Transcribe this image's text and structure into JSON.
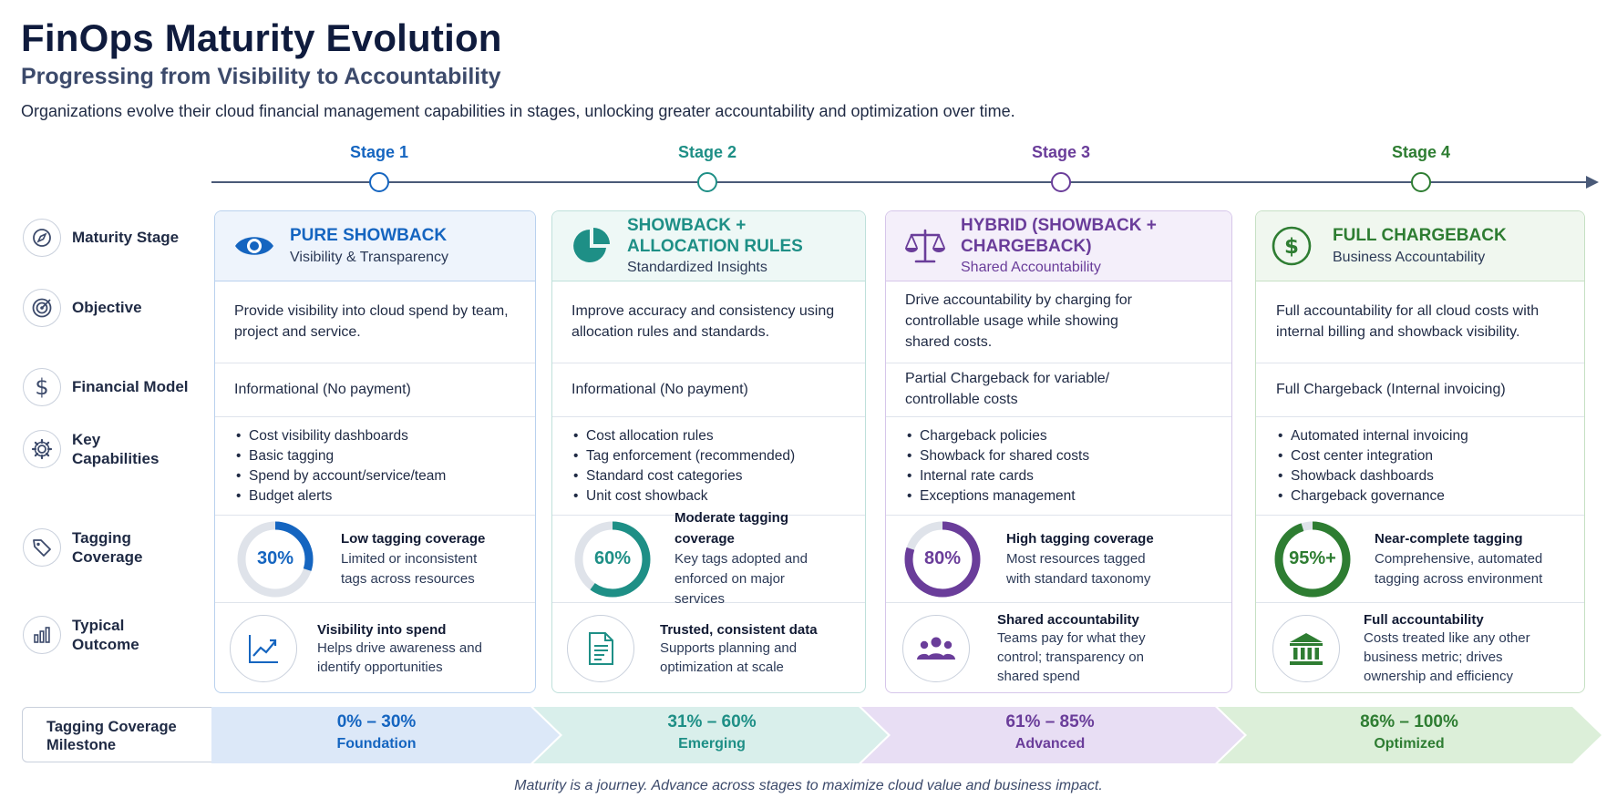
{
  "header": {
    "title": "FinOps Maturity Evolution",
    "subtitle": "Progressing from Visibility to Accountability",
    "intro": "Organizations evolve their cloud financial management capabilities in stages, unlocking greater accountability and optimization over time."
  },
  "rows": {
    "maturity_stage": "Maturity Stage",
    "objective": "Objective",
    "financial_model": "Financial Model",
    "key_capabilities": "Key Capabilities",
    "tagging_coverage": "Tagging Coverage",
    "typical_outcome": "Typical Outcome"
  },
  "stages": [
    {
      "label": "Stage 1",
      "color": "#1565c0",
      "tint": "#eef4fc",
      "border": "#b9d1ee",
      "icon": "eye-icon",
      "title": "PURE SHOWBACK",
      "subtitle": "Visibility & Transparency",
      "objective": "Provide visibility into cloud spend by team, project and service.",
      "financial_model": "Informational (No payment)",
      "capabilities": [
        "Cost visibility dashboards",
        "Basic tagging",
        "Spend by account/service/team",
        "Budget alerts"
      ],
      "coverage": {
        "value": 30,
        "label": "30%",
        "title": "Low tagging coverage",
        "desc": "Limited or inconsistent tags across resources"
      },
      "outcome": {
        "icon": "trend-chart-icon",
        "title": "Visibility into spend",
        "desc": "Helps drive awareness and identify opportunities"
      }
    },
    {
      "label": "Stage 2",
      "color": "#1e8f86",
      "tint": "#eef8f6",
      "border": "#bfe0db",
      "icon": "pie-chart-icon",
      "title": "SHOWBACK + ALLOCATION RULES",
      "subtitle": "Standardized Insights",
      "objective": "Improve accuracy and consistency using allocation rules and standards.",
      "financial_model": "Informational (No payment)",
      "capabilities": [
        "Cost allocation rules",
        "Tag enforcement (recommended)",
        "Standard cost categories",
        "Unit cost showback"
      ],
      "coverage": {
        "value": 60,
        "label": "60%",
        "title": "Moderate tagging coverage",
        "desc": "Key tags adopted and enforced on major services"
      },
      "outcome": {
        "icon": "document-icon",
        "title": "Trusted, consistent data",
        "desc": "Supports planning and optimization at scale"
      }
    },
    {
      "label": "Stage 3",
      "color": "#6a3d9a",
      "tint": "#f4effa",
      "border": "#d6c6ea",
      "icon": "balance-scale-icon",
      "title": "HYBRID (SHOWBACK + CHARGEBACK)",
      "subtitle": "Shared Accountability",
      "objective": "Drive accountability by charging for controllable usage while showing shared costs.",
      "financial_model": "Partial Chargeback for variable/ controllable costs",
      "capabilities": [
        "Chargeback policies",
        "Showback for shared costs",
        "Internal rate cards",
        "Exceptions management"
      ],
      "coverage": {
        "value": 80,
        "label": "80%",
        "title": "High tagging coverage",
        "desc": "Most resources tagged with standard taxonomy"
      },
      "outcome": {
        "icon": "team-icon",
        "title": "Shared accountability",
        "desc": "Teams pay for what they control; transparency on shared spend"
      }
    },
    {
      "label": "Stage 4",
      "color": "#2e7d32",
      "tint": "#f0f7ef",
      "border": "#c6e0c4",
      "icon": "dollar-icon",
      "title": "FULL CHARGEBACK",
      "subtitle": "Business Accountability",
      "objective": "Full accountability for all cloud costs with internal billing and showback visibility.",
      "financial_model": "Full Chargeback (Internal invoicing)",
      "capabilities": [
        "Automated internal invoicing",
        "Cost center integration",
        "Showback dashboards",
        "Chargeback governance"
      ],
      "coverage": {
        "value": 95,
        "label": "95%+",
        "title": "Near-complete tagging",
        "desc": "Comprehensive, automated tagging across environment"
      },
      "outcome": {
        "icon": "bank-icon",
        "title": "Full accountability",
        "desc": "Costs treated like any other business metric; drives ownership and efficiency"
      }
    }
  ],
  "milestone": {
    "label": "Tagging Coverage Milestone",
    "bands": [
      {
        "range": "0% – 30%",
        "name": "Foundation",
        "color": "#1565c0",
        "fill": "#dce8f8"
      },
      {
        "range": "31% – 60%",
        "name": "Emerging",
        "color": "#1e8f86",
        "fill": "#d9efeb"
      },
      {
        "range": "61% – 85%",
        "name": "Advanced",
        "color": "#6a3d9a",
        "fill": "#e8def4"
      },
      {
        "range": "86% – 100%",
        "name": "Optimized",
        "color": "#2e7d32",
        "fill": "#dcefd9"
      }
    ]
  },
  "footer": "Maturity is a journey. Advance across stages to maximize cloud value and business impact."
}
